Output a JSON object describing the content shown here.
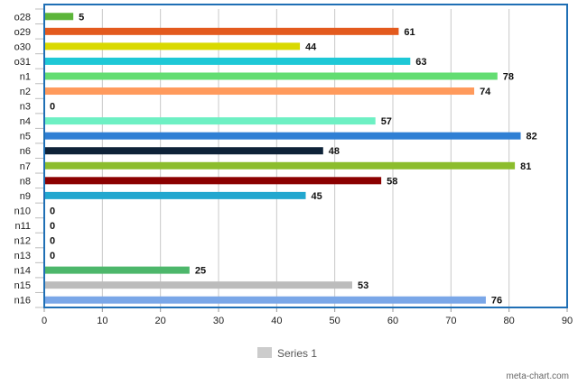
{
  "chart_data": {
    "type": "bar",
    "orientation": "horizontal",
    "categories": [
      "o28",
      "o29",
      "o30",
      "o31",
      "n1",
      "n2",
      "n3",
      "n4",
      "n5",
      "n6",
      "n7",
      "n8",
      "n9",
      "n10",
      "n11",
      "n12",
      "n13",
      "n14",
      "n15",
      "n16"
    ],
    "series": [
      {
        "name": "Series 1",
        "values": [
          5,
          61,
          44,
          63,
          78,
          74,
          0,
          57,
          82,
          48,
          81,
          58,
          45,
          0,
          0,
          0,
          0,
          25,
          53,
          76
        ],
        "colors": [
          "#5cb53a",
          "#e35a1e",
          "#d9d900",
          "#1ec8d6",
          "#63dd72",
          "#ff9a5c",
          "#7a52c7",
          "#6df0c3",
          "#2f7fd4",
          "#0e2238",
          "#8cbd2d",
          "#8b0000",
          "#22a7cf",
          "#999999",
          "#999999",
          "#999999",
          "#999999",
          "#4db76b",
          "#bcbcbc",
          "#7aa7e8"
        ]
      }
    ],
    "data_labels": [
      "5",
      "61",
      "44",
      "63",
      "78",
      "74",
      "0",
      "57",
      "82",
      "48",
      "81",
      "58",
      "45",
      "0",
      "0",
      "0",
      "0",
      "25",
      "53",
      "76"
    ],
    "xlim": [
      0,
      90
    ],
    "x_ticks": [
      "0",
      "10",
      "20",
      "30",
      "40",
      "50",
      "60",
      "70",
      "80",
      "90"
    ],
    "grid": "vertical",
    "legend": {
      "placement": "bottom-center",
      "label": "Series 1",
      "color": "#cccccc"
    },
    "plot_border_color": "#1f6fb5"
  },
  "credit": "meta-chart.com"
}
